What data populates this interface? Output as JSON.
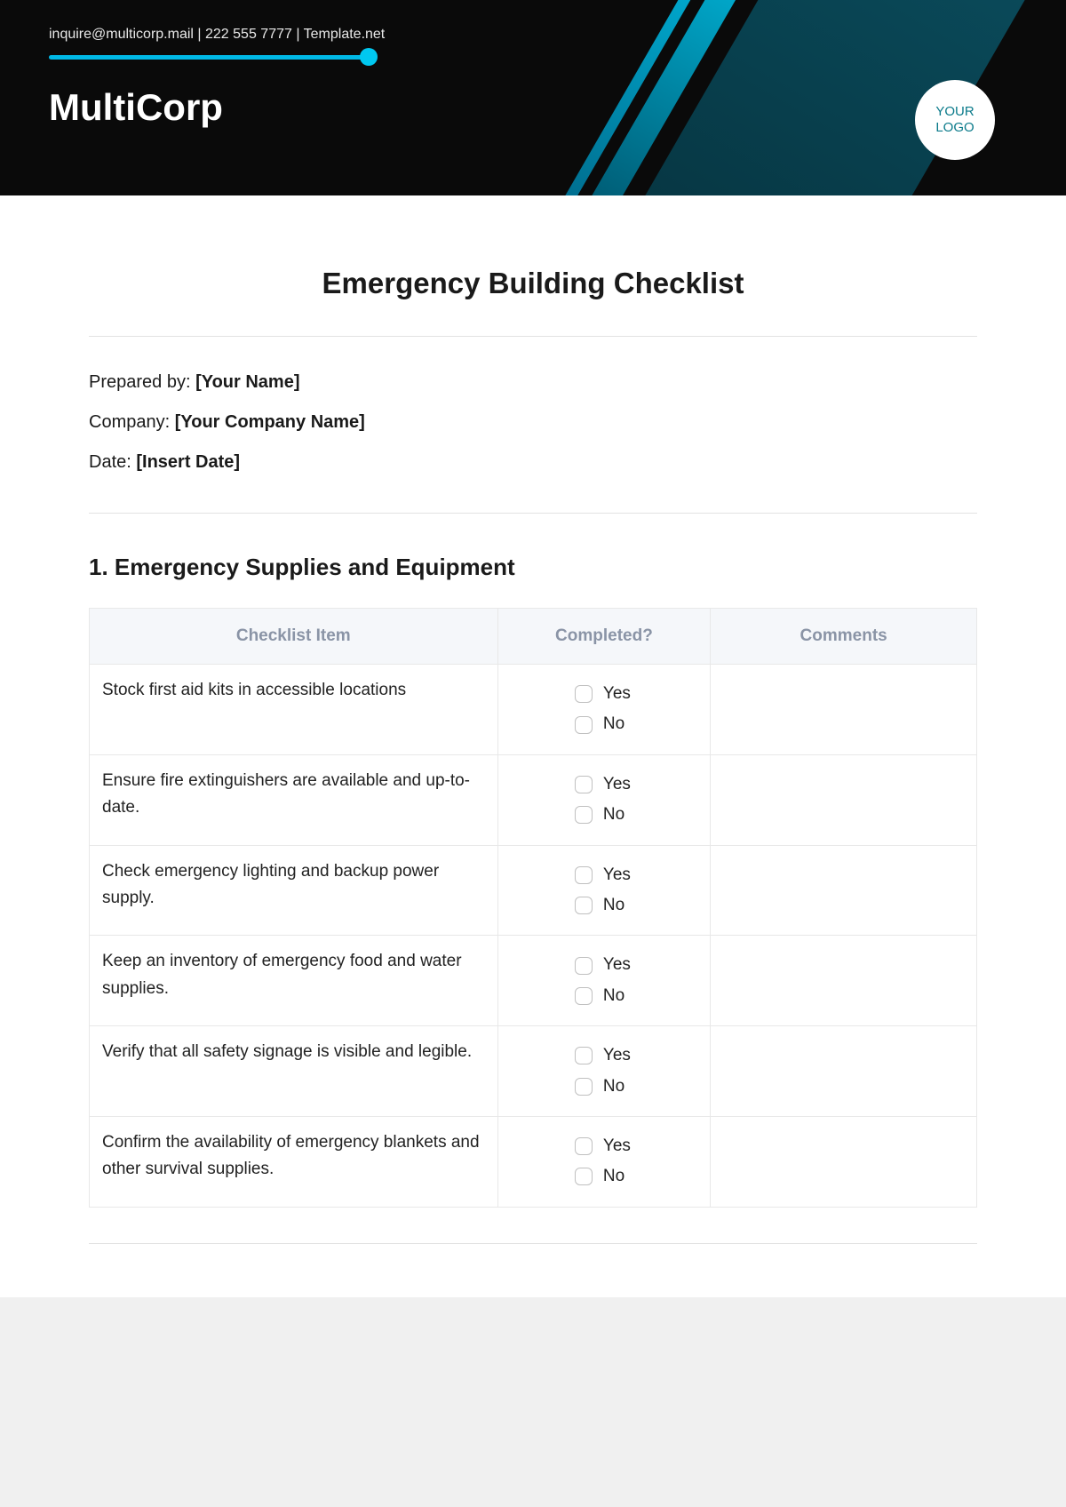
{
  "header": {
    "contact_line": "inquire@multicorp.mail | 222 555 7777 | Template.net",
    "company_name": "MultiCorp",
    "logo_line1": "YOUR",
    "logo_line2": "LOGO",
    "colors": {
      "background": "#0a0a0a",
      "slider": "#00b8e6",
      "slider_dot": "#00c8f0",
      "logo_text": "#0a7a8a"
    }
  },
  "document": {
    "title": "Emergency Building Checklist",
    "meta": {
      "prepared_by_label": "Prepared by: ",
      "prepared_by_value": "[Your Name]",
      "company_label": "Company: ",
      "company_value": "[Your Company Name]",
      "date_label": "Date: ",
      "date_value": "[Insert Date]"
    },
    "section1": {
      "title": "1. Emergency Supplies and Equipment",
      "columns": {
        "item": "Checklist Item",
        "completed": "Completed?",
        "comments": "Comments"
      },
      "yes_label": "Yes",
      "no_label": "No",
      "rows": [
        {
          "item": "Stock first aid kits in accessible locations",
          "comments": ""
        },
        {
          "item": "Ensure fire extinguishers are available and up-to-date.",
          "comments": ""
        },
        {
          "item": "Check emergency lighting and backup power supply.",
          "comments": ""
        },
        {
          "item": "Keep an inventory of emergency food and water supplies.",
          "comments": ""
        },
        {
          "item": "Verify that all safety signage is visible and legible.",
          "comments": ""
        },
        {
          "item": "Confirm the availability of emergency blankets and other survival supplies.",
          "comments": ""
        }
      ]
    }
  }
}
